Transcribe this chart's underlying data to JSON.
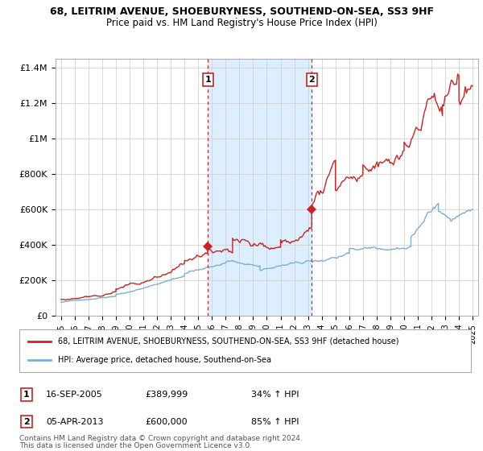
{
  "title_line1": "68, LEITRIM AVENUE, SHOEBURYNESS, SOUTHEND-ON-SEA, SS3 9HF",
  "title_line2": "Price paid vs. HM Land Registry's House Price Index (HPI)",
  "ylim": [
    0,
    1450000
  ],
  "yticks": [
    0,
    200000,
    400000,
    600000,
    800000,
    1000000,
    1200000,
    1400000
  ],
  "ytick_labels": [
    "£0",
    "£200K",
    "£400K",
    "£600K",
    "£800K",
    "£1M",
    "£1.2M",
    "£1.4M"
  ],
  "sale1_date": "16-SEP-2005",
  "sale1_price": 389999,
  "sale1_hpi_pct": "34%",
  "sale1_x": 2005.71,
  "sale2_date": "05-APR-2013",
  "sale2_price": 600000,
  "sale2_hpi_pct": "85%",
  "sale2_x": 2013.27,
  "hpi_line_color": "#7bafd4",
  "price_line_color": "#cc2222",
  "vline_color": "#cc2222",
  "shade_color": "#ddeeff",
  "bg_color": "#ffffff",
  "grid_color": "#cccccc",
  "legend_label_red": "68, LEITRIM AVENUE, SHOEBURYNESS, SOUTHEND-ON-SEA, SS3 9HF (detached house)",
  "legend_label_blue": "HPI: Average price, detached house, Southend-on-Sea",
  "footnote1": "Contains HM Land Registry data © Crown copyright and database right 2024.",
  "footnote2": "This data is licensed under the Open Government Licence v3.0."
}
